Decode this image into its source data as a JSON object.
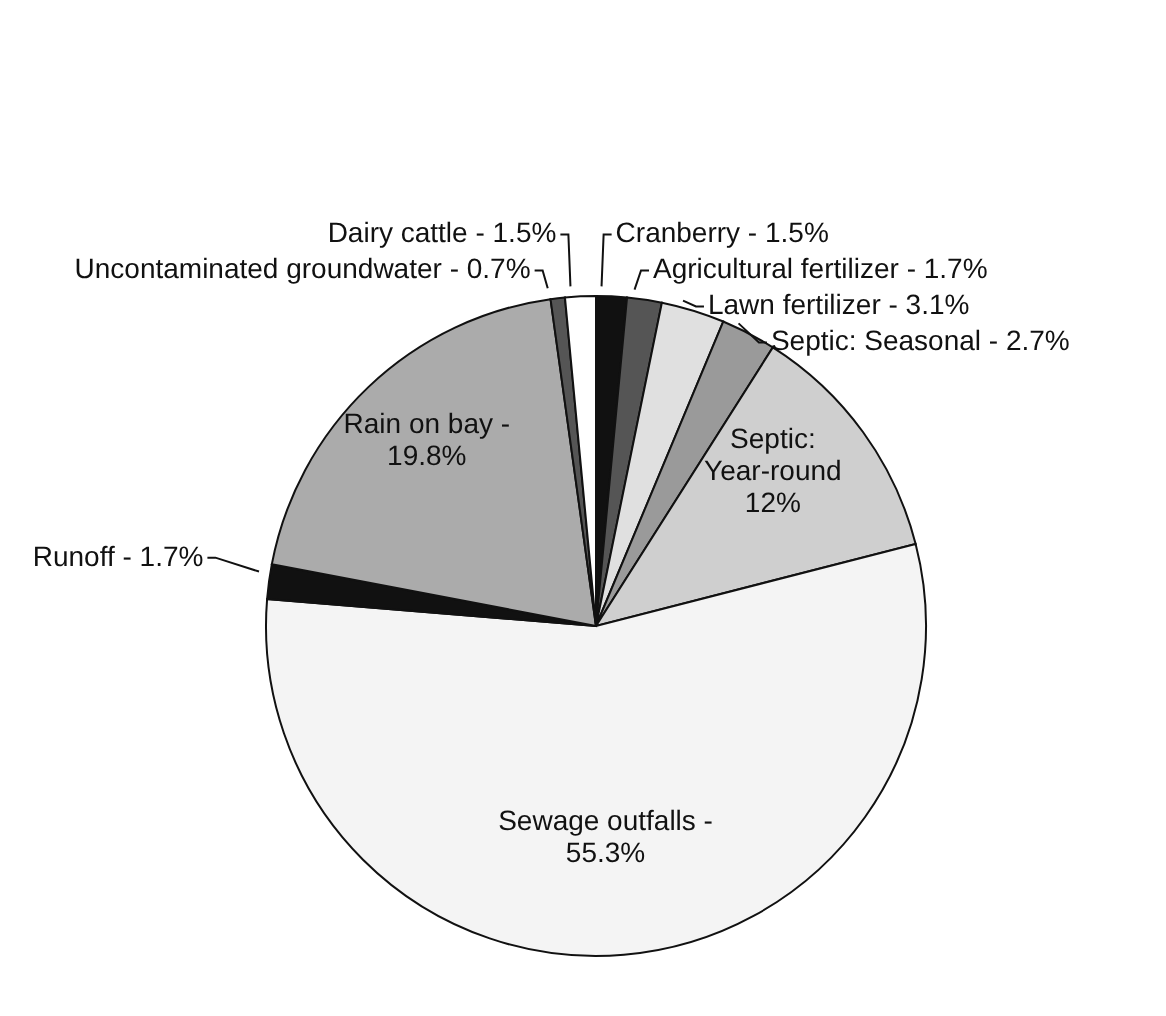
{
  "chart_data": {
    "type": "pie",
    "categories": [
      "Cranberry -",
      "Agricultural fertilizer -",
      "Lawn fertilizer -",
      "Septic:  Seasonal -",
      "Septic: Year-round",
      "Sewage outfalls -",
      "Runoff -",
      "Rain on bay -",
      "Uncontaminated groundwater -",
      "Dairy cattle -"
    ],
    "values": [
      1.5,
      1.7,
      3.1,
      2.7,
      12,
      55.3,
      1.7,
      19.8,
      0.7,
      1.5
    ],
    "colors": [
      "#111111",
      "#555555",
      "#e0e0e0",
      "#9a9a9a",
      "#cfcfcf",
      "#f4f4f4",
      "#111111",
      "#ababab",
      "#555555",
      "#ffffff"
    ],
    "value_labels": [
      "1.5%",
      "1.7%",
      "3.1%",
      "2.7%",
      "12%",
      "55.3%",
      "1.7%",
      "19.8%",
      "0.7%",
      "1.5%"
    ]
  }
}
